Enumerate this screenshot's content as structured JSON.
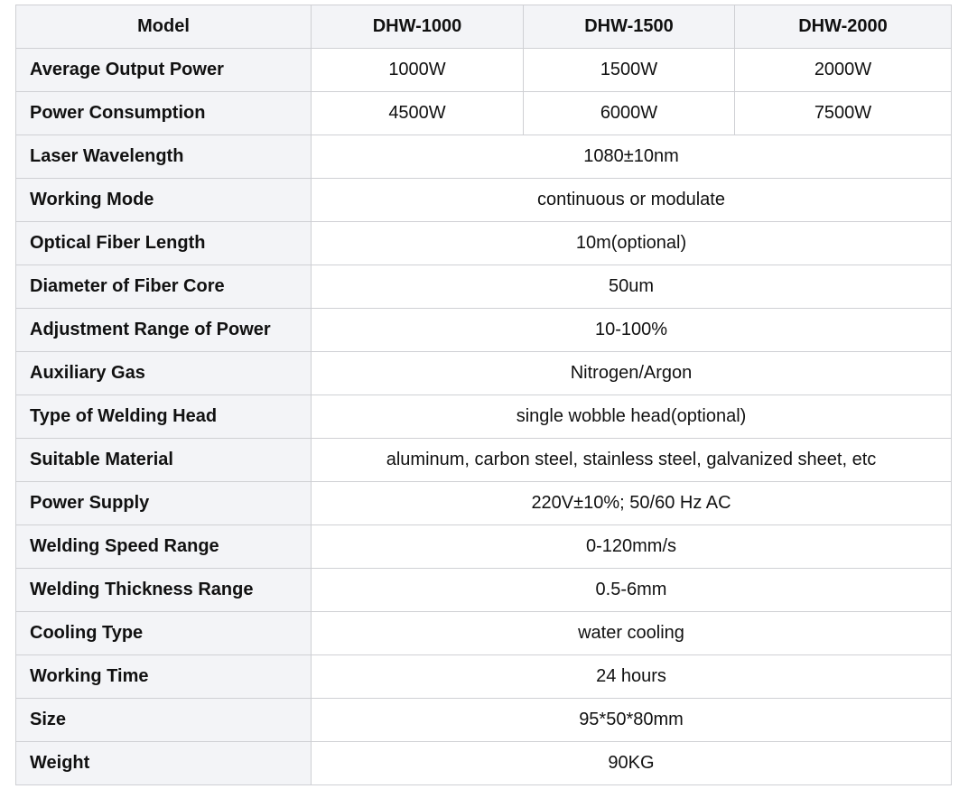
{
  "header": {
    "label": "Model",
    "models": [
      "DHW-1000",
      "DHW-1500",
      "DHW-2000"
    ]
  },
  "rows": [
    {
      "label": "Average Output Power",
      "values": [
        "1000W",
        "1500W",
        "2000W"
      ]
    },
    {
      "label": "Power Consumption",
      "values": [
        "4500W",
        "6000W",
        "7500W"
      ]
    },
    {
      "label": "Laser Wavelength",
      "value": "1080±10nm"
    },
    {
      "label": "Working Mode",
      "value": "continuous or modulate"
    },
    {
      "label": "Optical Fiber Length",
      "value": "10m(optional)"
    },
    {
      "label": "Diameter of Fiber Core",
      "value": "50um"
    },
    {
      "label": "Adjustment Range of Power",
      "value": "10-100%"
    },
    {
      "label": "Auxiliary Gas",
      "value": "Nitrogen/Argon"
    },
    {
      "label": "Type of Welding Head",
      "value": "single wobble head(optional)"
    },
    {
      "label": "Suitable Material",
      "value": "aluminum, carbon steel, stainless steel, galvanized sheet, etc"
    },
    {
      "label": "Power Supply",
      "value": "220V±10%; 50/60 Hz AC"
    },
    {
      "label": "Welding Speed Range",
      "value": "0-120mm/s"
    },
    {
      "label": "Welding Thickness Range",
      "value": "0.5-6mm"
    },
    {
      "label": "Cooling Type",
      "value": "water cooling"
    },
    {
      "label": "Working Time",
      "value": "24 hours"
    },
    {
      "label": "Size",
      "value": "95*50*80mm"
    },
    {
      "label": "Weight",
      "value": "90KG"
    }
  ]
}
